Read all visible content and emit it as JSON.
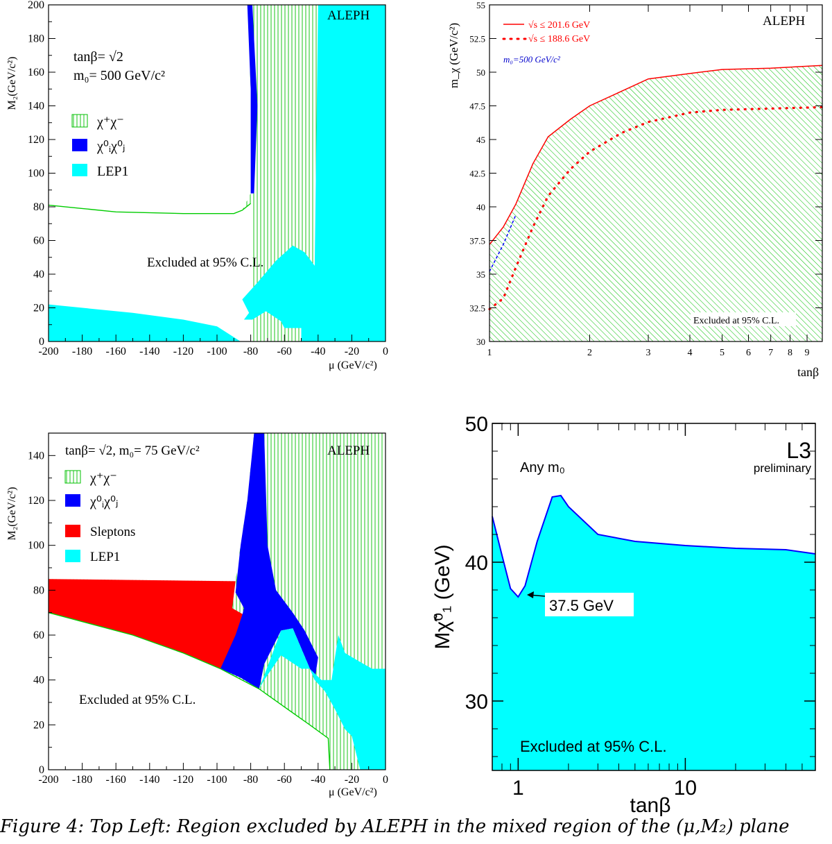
{
  "caption": "Figure 4: Top Left: Region excluded by ALEPH in the mixed region of the (μ,M₂) plane",
  "chart_data": [
    {
      "type": "area",
      "experiment": "ALEPH",
      "x_tick_labels": [
        "-200",
        "-180",
        "-160",
        "-140",
        "-120",
        "-100",
        "-80",
        "-60",
        "-40",
        "-20",
        "0"
      ],
      "y_tick_labels": [
        "0",
        "20",
        "40",
        "60",
        "80",
        "100",
        "120",
        "140",
        "160",
        "180",
        "200"
      ],
      "xlabel": "μ (GeV/c²)",
      "ylabel": "M₂(GeV/c²)",
      "xlim": [
        -200,
        0
      ],
      "ylim": [
        0,
        200
      ],
      "params": [
        "tanβ= √2",
        "m₀= 500 GeV/c²"
      ],
      "legend": [
        "χ⁺χ⁻",
        "χ⁰ᵢχ⁰ⱼ",
        "LEP1"
      ],
      "annotation": "Excluded at 95% C.L.",
      "colors": {
        "chargino": "#00cc00",
        "neutralino": "#0000ff",
        "lep1": "#00ffff"
      },
      "series": [
        {
          "name": "χ⁺χ⁻",
          "boundary": [
            [
              -200,
              81
            ],
            [
              -180,
              79
            ],
            [
              -160,
              77
            ],
            [
              -120,
              76
            ],
            [
              -90,
              76
            ],
            [
              -85,
              78
            ],
            [
              -80,
              82
            ]
          ]
        },
        {
          "name": "χ⁰ᵢχ⁰ⱼ",
          "region": [
            [
              -82,
              200
            ],
            [
              -79,
              200
            ],
            [
              -76,
              140
            ],
            [
              -78,
              88
            ],
            [
              -80,
              88
            ],
            [
              -80,
              150
            ]
          ]
        },
        {
          "name": "LEP1",
          "region": [
            [
              -200,
              22
            ],
            [
              -150,
              17
            ],
            [
              -120,
              13
            ],
            [
              -100,
              9
            ],
            [
              -86,
              0
            ],
            [
              -200,
              0
            ]
          ]
        },
        {
          "name": "LEP1",
          "region": [
            [
              -85,
              25
            ],
            [
              -76,
              35
            ],
            [
              -65,
              48
            ],
            [
              -55,
              57
            ],
            [
              -48,
              53
            ],
            [
              -42,
              45
            ],
            [
              -40,
              200
            ],
            [
              0,
              200
            ],
            [
              0,
              0
            ],
            [
              -50,
              0
            ],
            [
              -50,
              8
            ],
            [
              -60,
              8
            ],
            [
              -62,
              12
            ],
            [
              -71,
              18
            ],
            [
              -79,
              13
            ],
            [
              -84,
              13
            ],
            [
              -81,
              17
            ]
          ]
        }
      ]
    },
    {
      "type": "line",
      "experiment": "ALEPH",
      "x_tick_labels": [
        "1",
        "2",
        "3",
        "4",
        "5",
        "6",
        "7",
        "8",
        "9"
      ],
      "y_tick_labels": [
        "30",
        "32.5",
        "35",
        "37.5",
        "40",
        "42.5",
        "45",
        "47.5",
        "50",
        "52.5",
        "55"
      ],
      "xlabel": "tanβ",
      "ylabel": "m_χ (GeV/c²)",
      "xlim": [
        1,
        10
      ],
      "ylim": [
        30,
        55
      ],
      "xscale": "log",
      "annotation": "Excluded at 95% C.L.",
      "series": [
        {
          "name": "√s ≤ 201.6 GeV",
          "style": "solid",
          "color": "#ff0000",
          "x": [
            1,
            1.1,
            1.2,
            1.35,
            1.5,
            1.75,
            2,
            2.5,
            3,
            4,
            5,
            7,
            10
          ],
          "y": [
            37.2,
            38.5,
            40.2,
            43.2,
            45.2,
            46.5,
            47.5,
            48.6,
            49.5,
            49.9,
            50.2,
            50.3,
            50.5
          ]
        },
        {
          "name": "√s ≤ 188.6 GeV",
          "style": "dotted",
          "color": "#ff0000",
          "x": [
            1,
            1.1,
            1.2,
            1.35,
            1.5,
            1.75,
            2,
            2.5,
            3,
            4,
            5,
            7,
            10
          ],
          "y": [
            32.4,
            33.2,
            35.5,
            38.5,
            40.8,
            42.8,
            44.1,
            45.5,
            46.3,
            47,
            47.2,
            47.3,
            47.4
          ]
        },
        {
          "name": "m₀=500 GeV/c²",
          "style": "dashed",
          "color": "#0000ff",
          "x": [
            1,
            1.1,
            1.2
          ],
          "y": [
            35.2,
            37.2,
            39.4
          ]
        }
      ]
    },
    {
      "type": "area",
      "experiment": "ALEPH",
      "x_tick_labels": [
        "-200",
        "-180",
        "-160",
        "-140",
        "-120",
        "-100",
        "-80",
        "-60",
        "-40",
        "-20",
        "0"
      ],
      "y_tick_labels": [
        "0",
        "20",
        "40",
        "60",
        "80",
        "100",
        "120",
        "140"
      ],
      "xlabel": "μ (GeV/c²)",
      "ylabel": "M₂(GeV/c²)",
      "xlim": [
        -200,
        0
      ],
      "ylim": [
        0,
        150
      ],
      "params": [
        "tanβ= √2, m₀= 75 GeV/c²"
      ],
      "legend": [
        "χ⁺χ⁻",
        "χ⁰ᵢχ⁰ⱼ",
        "Sleptons",
        "LEP1"
      ],
      "annotation": "Excluded at 95% C.L.",
      "colors": {
        "chargino": "#00cc00",
        "neutralino": "#0000ff",
        "sleptons": "#ff0000",
        "lep1": "#00ffff"
      },
      "series": [
        {
          "name": "Sleptons",
          "region": [
            [
              -200,
              85
            ],
            [
              -89,
              84
            ],
            [
              -91,
              72
            ],
            [
              -84,
              69
            ],
            [
              -80,
              70
            ],
            [
              -90,
              50
            ],
            [
              -98,
              45
            ],
            [
              -120,
              52
            ],
            [
              -150,
              60
            ],
            [
              -200,
              70
            ]
          ]
        },
        {
          "name": "χ⁰ᵢχ⁰ⱼ",
          "region": [
            [
              -78,
              150
            ],
            [
              -72,
              150
            ],
            [
              -70,
              100
            ],
            [
              -65,
              80
            ],
            [
              -55,
              70
            ],
            [
              -48,
              62
            ],
            [
              -40,
              50
            ],
            [
              -42,
              40
            ],
            [
              -55,
              63
            ],
            [
              -62,
              62
            ],
            [
              -72,
              47
            ],
            [
              -75,
              36
            ],
            [
              -86,
              41
            ],
            [
              -98,
              45
            ],
            [
              -89,
              60
            ],
            [
              -85,
              69
            ],
            [
              -84,
              72
            ],
            [
              -89,
              79
            ],
            [
              -86,
              100
            ],
            [
              -82,
              120
            ]
          ]
        },
        {
          "name": "LEP1",
          "region": [
            [
              -75,
              36
            ],
            [
              -62,
              62
            ],
            [
              -55,
              63
            ],
            [
              -42,
              40
            ],
            [
              -36,
              35
            ],
            [
              -30,
              27
            ],
            [
              -24,
              18
            ],
            [
              -20,
              15
            ],
            [
              -15,
              0
            ],
            [
              0,
              0
            ],
            [
              0,
              45
            ],
            [
              -8,
              45
            ],
            [
              -15,
              48
            ],
            [
              -24,
              52
            ],
            [
              -28,
              60
            ],
            [
              -32,
              40
            ],
            [
              -38,
              40
            ],
            [
              -45,
              45
            ],
            [
              -50,
              45
            ],
            [
              -62,
              51
            ],
            [
              -72,
              40
            ]
          ]
        },
        {
          "name": "χ⁺χ⁻",
          "boundary": [
            [
              -200,
              70
            ],
            [
              -150,
              60
            ],
            [
              -120,
              52
            ],
            [
              -98,
              45
            ],
            [
              -75,
              36
            ],
            [
              -60,
              28
            ],
            [
              -45,
              20
            ],
            [
              -34,
              14
            ],
            [
              -33,
              0
            ]
          ]
        }
      ]
    },
    {
      "type": "area",
      "experiment": "L3",
      "status": "preliminary",
      "x_tick_labels": [
        "1",
        "10"
      ],
      "y_tick_labels": [
        "30",
        "40",
        "50"
      ],
      "xlabel": "tanβ",
      "ylabel": "Mχ̃⁰₁ (GeV)",
      "xlim": [
        0.7,
        60
      ],
      "ylim": [
        25,
        50
      ],
      "xscale": "log",
      "condition": "Any m₀",
      "annotation": "Excluded at 95% C.L.",
      "minimum_label": "37.5 GeV",
      "minimum": {
        "x": 1,
        "y": 37.5
      },
      "colors": {
        "fill": "#00ffff",
        "line": "#0000ff"
      },
      "series": [
        {
          "name": "excluded boundary",
          "x": [
            0.7,
            0.8,
            0.9,
            1.0,
            1.1,
            1.3,
            1.6,
            1.8,
            2.0,
            3.0,
            5.0,
            10,
            20,
            40,
            60
          ],
          "y": [
            43.3,
            40.5,
            38.1,
            37.5,
            38.3,
            41.5,
            44.7,
            44.8,
            44.0,
            42.0,
            41.5,
            41.2,
            41.0,
            40.9,
            40.6
          ]
        }
      ]
    }
  ]
}
